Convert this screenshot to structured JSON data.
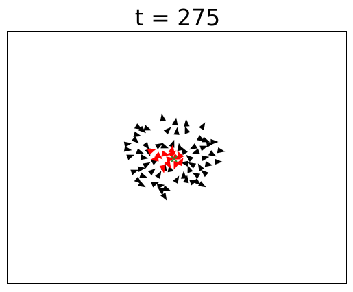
{
  "title": "t = 275",
  "agent_color": "#000000",
  "highlight_color": "#ff0000",
  "center_marker_color": "#2e8b2e"
}
